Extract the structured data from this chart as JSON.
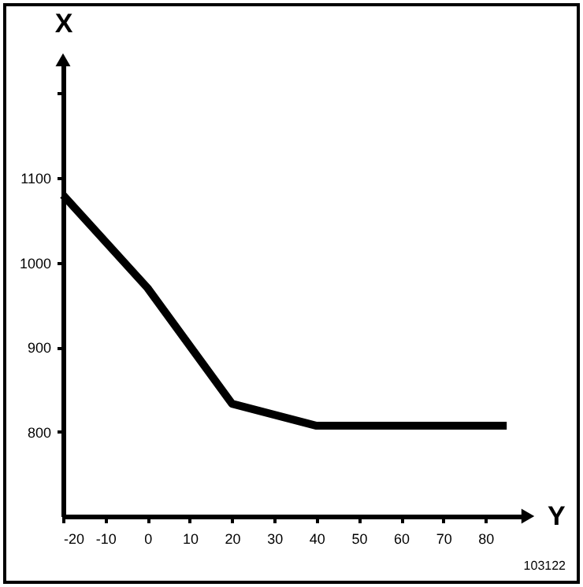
{
  "chart_data": {
    "type": "line",
    "xlabel": "Y",
    "ylabel": "X",
    "x": [
      -20,
      0,
      20,
      40,
      85
    ],
    "series": [
      {
        "color": "#000000",
        "values": [
          1080,
          970,
          833,
          807,
          807
        ]
      }
    ],
    "xlim": [
      -20,
      90
    ],
    "ylim": [
      700,
      1240
    ],
    "xticks": [
      -20,
      -10,
      0,
      10,
      20,
      30,
      40,
      50,
      60,
      70,
      80
    ],
    "yticks": [
      800,
      900,
      1000,
      1100,
      {
        "value": 1200,
        "label": null
      }
    ],
    "annotations": [
      "103122"
    ]
  }
}
